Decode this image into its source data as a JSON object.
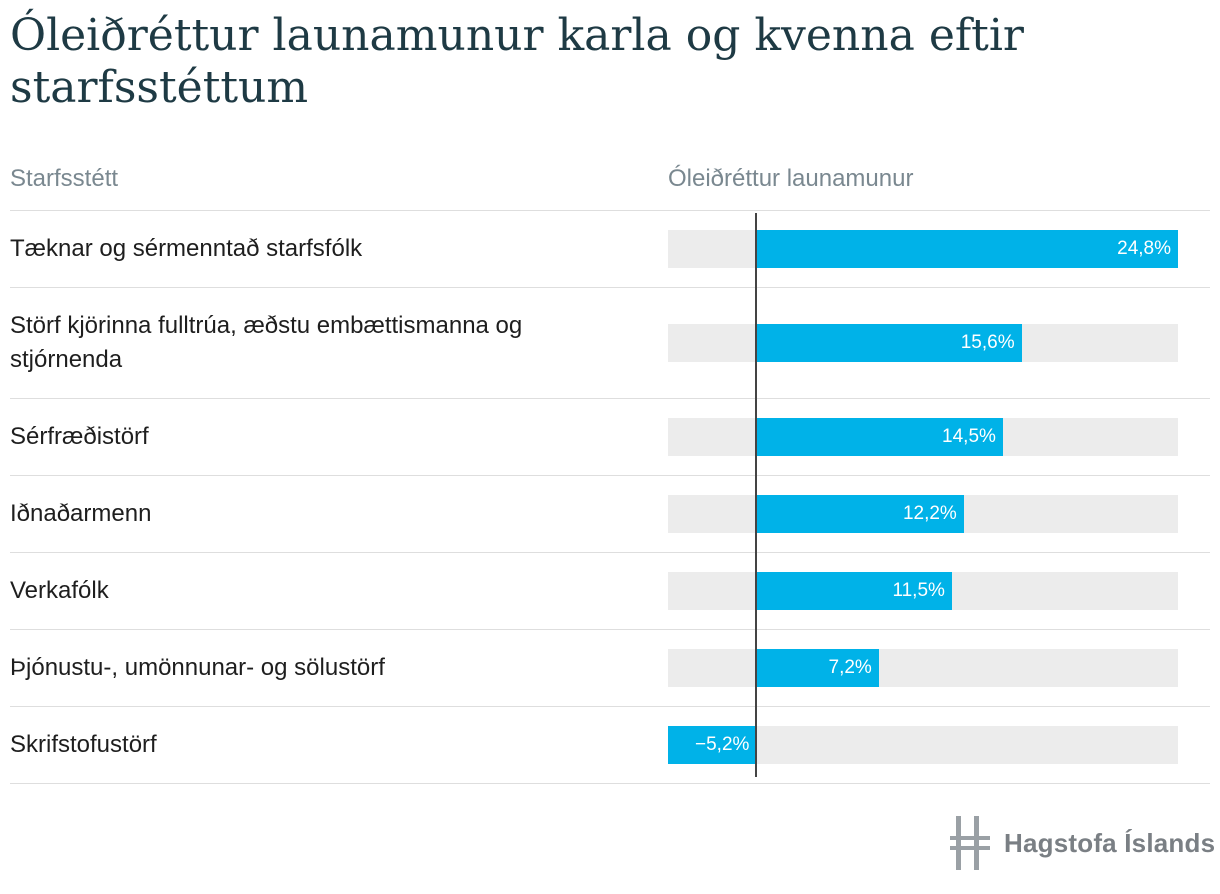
{
  "title": "Óleiðréttur launamunur karla og kvenna eftir starfsstéttum",
  "header": {
    "category_label": "Starfsstétt",
    "value_label": "Óleiðréttur launamunur"
  },
  "logo": {
    "text": "Hagstofa Íslands",
    "icon": "hagstofa-logo-icon"
  },
  "colors": {
    "bar": "#00b2e8",
    "track": "#ececec",
    "zero_line": "#444444"
  },
  "chart_data": {
    "type": "bar",
    "orientation": "horizontal",
    "categories": [
      "Tæknar og sérmenntað starfsfólk",
      "Störf kjörinna fulltrúa, æðstu embættismanna og stjórnenda",
      "Sérfræðistörf",
      "Iðnaðarmenn",
      "Verkafólk",
      "Þjónustu-, umönnunar- og sölustörf",
      "Skrifstofustörf"
    ],
    "values": [
      24.8,
      15.6,
      14.5,
      12.2,
      11.5,
      7.2,
      -5.2
    ],
    "value_labels": [
      "24,8%",
      "15,6%",
      "14,5%",
      "12,2%",
      "11,5%",
      "7,2%",
      "−5,2%"
    ],
    "unit": "%",
    "xlim": [
      -5.2,
      24.8
    ]
  }
}
